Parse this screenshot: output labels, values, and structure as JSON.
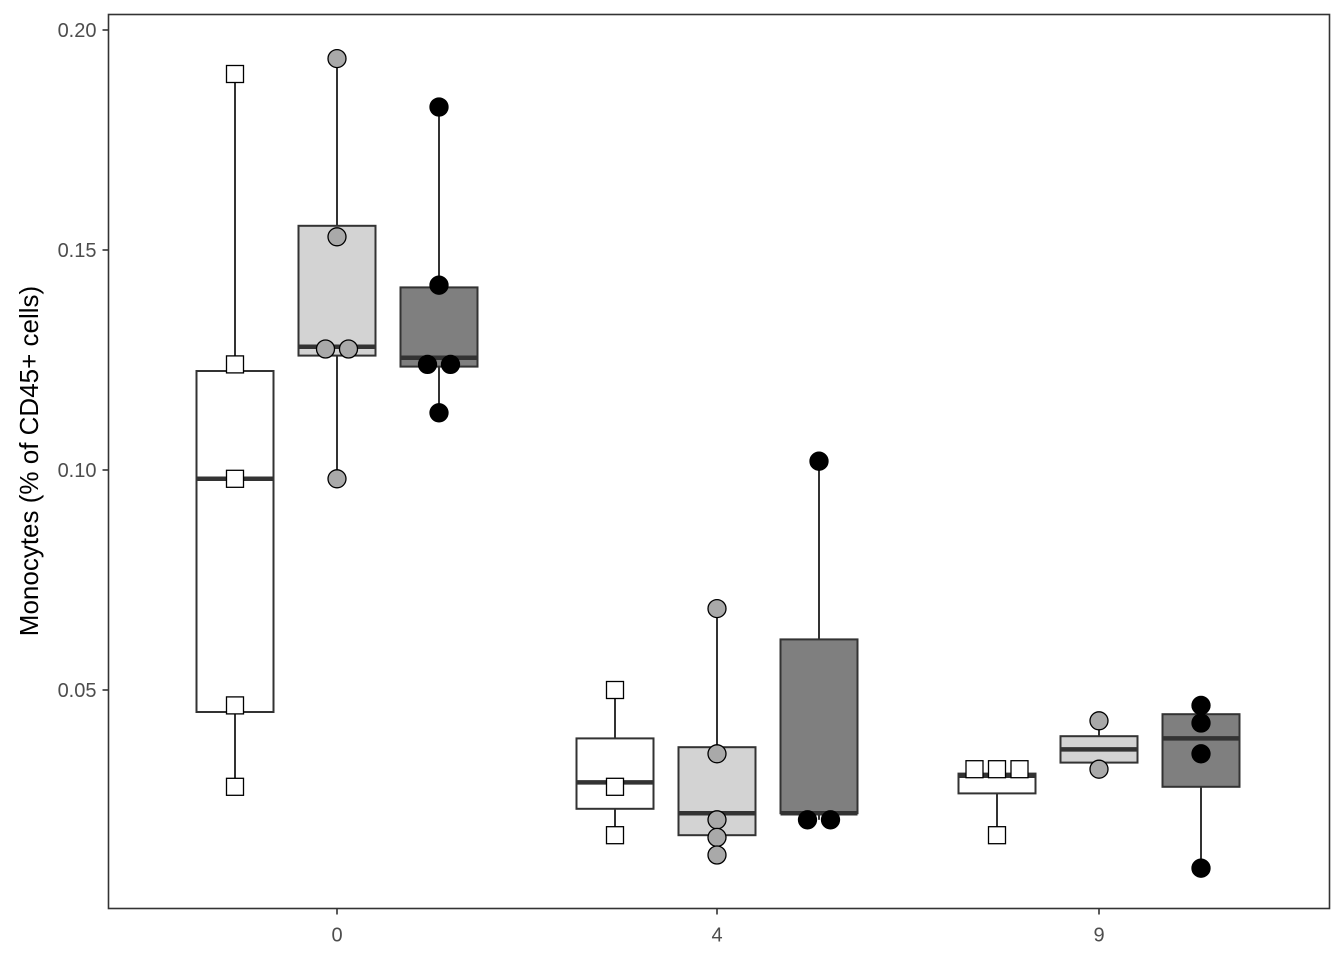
{
  "chart_data": {
    "type": "box",
    "ylabel": "Monocytes (% of CD45+ cells)",
    "xlabel": "",
    "categories": [
      "0",
      "4",
      "9"
    ],
    "ylim": [
      0.0,
      0.2
    ],
    "yticks": [
      0.05,
      0.1,
      0.15,
      0.2
    ],
    "ytick_labels": [
      "0.05",
      "0.10",
      "0.15",
      "0.20"
    ],
    "grid": false,
    "legend": "none",
    "series": [
      {
        "fill": "#ffffff",
        "point_fill": "#ffffff",
        "point_shape": "square",
        "boxes": [
          {
            "category": "0",
            "min": 0.028,
            "q1": 0.045,
            "median": 0.098,
            "q3": 0.1225,
            "max": 0.19,
            "points": [
              0.19,
              0.124,
              0.098,
              0.0465,
              0.028
            ]
          },
          {
            "category": "4",
            "min": 0.017,
            "q1": 0.023,
            "median": 0.029,
            "q3": 0.039,
            "max": 0.05,
            "points": [
              0.05,
              0.028,
              0.017
            ]
          },
          {
            "category": "9",
            "min": 0.017,
            "q1": 0.0265,
            "median": 0.0305,
            "q3": 0.031,
            "max": 0.032,
            "points": [
              0.032,
              0.032,
              0.032,
              0.017
            ]
          }
        ]
      },
      {
        "fill": "#d3d3d3",
        "point_fill": "#a9a9a9",
        "point_shape": "circle",
        "boxes": [
          {
            "category": "0",
            "min": 0.098,
            "q1": 0.126,
            "median": 0.128,
            "q3": 0.1555,
            "max": 0.1935,
            "points": [
              0.1935,
              0.153,
              0.1275,
              0.1275,
              0.098
            ]
          },
          {
            "category": "4",
            "min": 0.013,
            "q1": 0.017,
            "median": 0.022,
            "q3": 0.037,
            "max": 0.0685,
            "points": [
              0.0685,
              0.0355,
              0.0205,
              0.0165,
              0.0125
            ]
          },
          {
            "category": "9",
            "min": 0.032,
            "q1": 0.0335,
            "median": 0.0365,
            "q3": 0.0395,
            "max": 0.043,
            "points": [
              0.043,
              0.032
            ]
          }
        ]
      },
      {
        "fill": "#7f7f7f",
        "point_fill": "#000000",
        "point_shape": "circle",
        "boxes": [
          {
            "category": "0",
            "min": 0.113,
            "q1": 0.1235,
            "median": 0.1255,
            "q3": 0.1415,
            "max": 0.1825,
            "points": [
              0.1825,
              0.142,
              0.124,
              0.124,
              0.113
            ]
          },
          {
            "category": "4",
            "min": 0.0205,
            "q1": 0.022,
            "median": 0.022,
            "q3": 0.0615,
            "max": 0.102,
            "points": [
              0.102,
              0.0205,
              0.0205
            ]
          },
          {
            "category": "9",
            "min": 0.0095,
            "q1": 0.028,
            "median": 0.039,
            "q3": 0.0445,
            "max": 0.0465,
            "points": [
              0.0465,
              0.0425,
              0.0355,
              0.0095
            ]
          }
        ]
      }
    ]
  }
}
